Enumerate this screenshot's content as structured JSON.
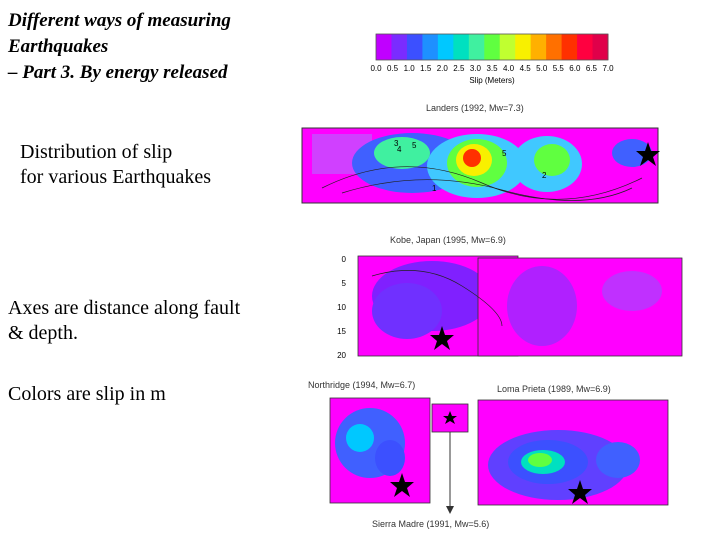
{
  "title_lines": [
    "Different ways of measuring",
    "Earthquakes",
    "– Part 3. By energy released"
  ],
  "body": {
    "distribution": [
      "Distribution of slip",
      "for various Earthquakes"
    ],
    "axes": [
      "Axes are  distance along fault",
      "& depth."
    ],
    "colors": "Colors are slip in m"
  },
  "colorbar": {
    "ticks": [
      "0.0",
      "0.5",
      "1.0",
      "1.5",
      "2.0",
      "2.5",
      "3.0",
      "3.5",
      "4.0",
      "4.5",
      "5.0",
      "5.5",
      "6.0",
      "6.5",
      "7.0"
    ],
    "label": "Slip (Meters)",
    "colors": [
      "#c000ff",
      "#7a2cff",
      "#3c50ff",
      "#1e90ff",
      "#00c8ff",
      "#00e0c0",
      "#40f0a0",
      "#60ff40",
      "#c0ff30",
      "#f8f000",
      "#ffb000",
      "#ff7000",
      "#ff3000",
      "#ff0040",
      "#e0004a"
    ]
  },
  "maps": {
    "landers": "Landers (1992, Mw=7.3)",
    "kobe": "Kobe, Japan (1995, Mw=6.9)",
    "northridge": "Northridge (1994, Mw=6.7)",
    "loma_prieta": "Loma Prieta (1989, Mw=6.9)",
    "sierra_madre": "Sierra Madre (1991, Mw=5.6)"
  },
  "depth_ticks": [
    "0",
    "5",
    "10",
    "15",
    "20"
  ]
}
